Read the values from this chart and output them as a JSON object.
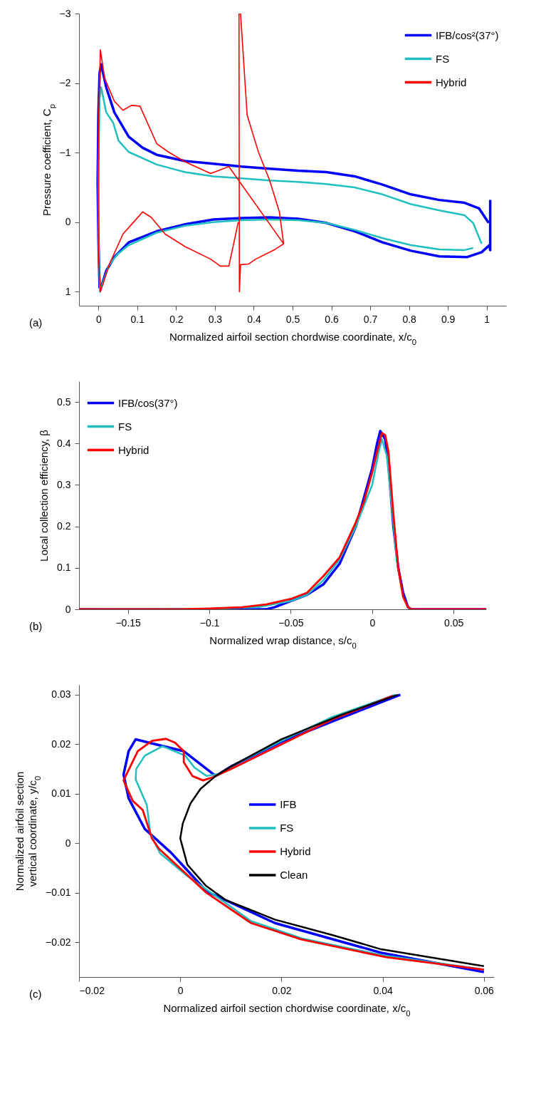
{
  "chart_data": [
    {
      "type": "line",
      "xlabel": "Normalized airfoil section chordwise coordinate, x/c$_{0}$",
      "ylabel": "Pressure coefficient, C$_{p}$",
      "xlim": [
        -0.05,
        1.05
      ],
      "ylim": [
        1.2,
        -3
      ],
      "xticks": [
        0,
        0.1,
        0.2,
        0.3,
        0.4,
        0.5,
        0.6,
        0.7,
        0.8,
        0.9,
        1
      ],
      "yticks": [
        -3,
        -2,
        -1,
        0,
        1
      ],
      "legend": "top right",
      "annotations": [
        "(a)"
      ],
      "series": [
        {
          "name": "IFB/cos²(37°)",
          "color": "#0000ff",
          "x": [
            1.005,
            0.98,
            0.943,
            0.878,
            0.805,
            0.732,
            0.66,
            0.587,
            0.514,
            0.441,
            0.369,
            0.296,
            0.223,
            0.15,
            0.114,
            0.078,
            0.041,
            0.02,
            0.007,
            0.003,
            0,
            -0.002,
            0,
            0.003,
            0.009,
            0.02,
            0.041,
            0.078,
            0.15,
            0.223,
            0.296,
            0.369,
            0.441,
            0.514,
            0.587,
            0.66,
            0.732,
            0.805,
            0.878,
            0.95,
            0.987,
            1.007,
            1.009,
            1.009
          ],
          "values": [
            0.01,
            -0.2,
            -0.28,
            -0.32,
            -0.4,
            -0.54,
            -0.66,
            -0.72,
            -0.74,
            -0.77,
            -0.8,
            -0.84,
            -0.88,
            -0.97,
            -1.07,
            -1.23,
            -1.58,
            -1.94,
            -2.27,
            -2.15,
            -1.58,
            -0.56,
            0.25,
            0.94,
            0.9,
            0.7,
            0.5,
            0.29,
            0.13,
            0.03,
            -0.04,
            -0.06,
            -0.07,
            -0.05,
            0.01,
            0.13,
            0.29,
            0.41,
            0.49,
            0.5,
            0.43,
            0.33,
            0.4,
            -0.32
          ]
        },
        {
          "name": "FS",
          "color": "#1fbfbf",
          "x": [
            0.987,
            0.965,
            0.943,
            0.878,
            0.805,
            0.732,
            0.66,
            0.587,
            0.514,
            0.441,
            0.369,
            0.296,
            0.223,
            0.15,
            0.078,
            0.052,
            0.038,
            0.02,
            0.007,
            0.003,
            0,
            0,
            0.004,
            0.012,
            0.027,
            0.049,
            0.078,
            0.15,
            0.223,
            0.296,
            0.369,
            0.441,
            0.514,
            0.587,
            0.66,
            0.732,
            0.805,
            0.878,
            0.943,
            0.965
          ],
          "values": [
            0.31,
            0.01,
            -0.1,
            -0.17,
            -0.26,
            -0.4,
            -0.5,
            -0.55,
            -0.58,
            -0.6,
            -0.63,
            -0.66,
            -0.72,
            -0.83,
            -1.01,
            -1.17,
            -1.43,
            -1.58,
            -1.94,
            -1.78,
            -0.76,
            0.25,
            1,
            0.86,
            0.62,
            0.46,
            0.33,
            0.15,
            0.05,
            0,
            -0.03,
            -0.04,
            -0.03,
            0.01,
            0.11,
            0.23,
            0.33,
            0.39,
            0.4,
            0.37
          ]
        },
        {
          "name": "Hybrid",
          "color": "#ff0000",
          "x": [
            0.36,
            0.336,
            0.314,
            0.289,
            0.223,
            0.172,
            0.136,
            0.114,
            0.092,
            0.063,
            0.027,
            0.005,
            0,
            0.001,
            0.005,
            0.016,
            0.041,
            0.063,
            0.085,
            0.107,
            0.15,
            0.18,
            0.223,
            0.289,
            0.336,
            0.477,
            0.455,
            0.405,
            0.387,
            0.366,
            0.363,
            0.362,
            0.366,
            0.383,
            0.412,
            0.441,
            0.466,
            0.477
          ],
          "values": [
            0,
            0.63,
            0.63,
            0.53,
            0.35,
            0.17,
            -0.07,
            -0.15,
            -0.01,
            0.17,
            0.62,
            1,
            0.46,
            -1.58,
            -2.48,
            -2.07,
            -1.74,
            -1.61,
            -1.68,
            -1.67,
            -1.13,
            -1.01,
            -0.87,
            -0.7,
            -0.8,
            0.31,
            0.39,
            0.53,
            0.6,
            0.61,
            1,
            -3,
            -3,
            -1.54,
            -1.01,
            -0.6,
            -0.15,
            0.31
          ]
        }
      ]
    },
    {
      "type": "line",
      "xlabel": "Normalized wrap distance, s/c$_{0}$",
      "ylabel": "Local collection efficiency, β",
      "xlim": [
        -0.18,
        0.07
      ],
      "ylim": [
        0,
        0.55
      ],
      "xticks": [
        -0.15,
        -0.1,
        -0.05,
        0,
        0.05
      ],
      "yticks": [
        0,
        0.1,
        0.2,
        0.3,
        0.4,
        0.5
      ],
      "legend": "top left",
      "annotations": [
        "(b)"
      ],
      "series": [
        {
          "name": "IFB/cos(37°)",
          "color": "#0000ff",
          "x": [
            -0.18,
            -0.065,
            -0.06,
            -0.05,
            -0.04,
            -0.03,
            -0.02,
            -0.01,
            -0.005,
            0,
            0.003,
            0.005,
            0.008,
            0.01,
            0.013,
            0.016,
            0.019,
            0.022,
            0.024,
            0.07
          ],
          "values": [
            0,
            0,
            0.005,
            0.02,
            0.035,
            0.06,
            0.11,
            0.2,
            0.27,
            0.34,
            0.4,
            0.43,
            0.41,
            0.35,
            0.2,
            0.1,
            0.04,
            0.005,
            0,
            0
          ]
        },
        {
          "name": "FS",
          "color": "#1fbfbf",
          "x": [
            -0.18,
            -0.1,
            -0.07,
            -0.05,
            -0.04,
            -0.03,
            -0.02,
            -0.01,
            0,
            0.004,
            0.006,
            0.009,
            0.012,
            0.015,
            0.018
          ],
          "values": [
            0,
            0.001,
            0.005,
            0.02,
            0.035,
            0.07,
            0.12,
            0.2,
            0.3,
            0.38,
            0.41,
            0.37,
            0.25,
            0.12,
            0.05
          ]
        },
        {
          "name": "Hybrid",
          "color": "#ff0000",
          "x": [
            -0.18,
            -0.12,
            -0.1,
            -0.08,
            -0.065,
            -0.05,
            -0.04,
            -0.03,
            -0.02,
            -0.01,
            -0.005,
            0,
            0.003,
            0.006,
            0.008,
            0.01,
            0.013,
            0.016,
            0.019,
            0.022,
            0.024,
            0.07
          ],
          "values": [
            0,
            0,
            0.002,
            0.005,
            0.012,
            0.025,
            0.04,
            0.08,
            0.125,
            0.21,
            0.26,
            0.33,
            0.38,
            0.425,
            0.42,
            0.38,
            0.23,
            0.1,
            0.03,
            0.005,
            0,
            0
          ]
        }
      ]
    },
    {
      "type": "line",
      "xlabel": "Normalized airfoil section chordwise coordinate, x/c$_{0}$",
      "ylabel": "Normalized airfoil section\nvertical coordinate, y/c$_{0}$",
      "xlim": [
        -0.02,
        0.062
      ],
      "ylim": [
        -0.027,
        0.032
      ],
      "xticks": [
        -0.02,
        0,
        0.02,
        0.04,
        0.06
      ],
      "yticks": [
        -0.02,
        -0.01,
        0,
        0.01,
        0.02,
        0.03
      ],
      "legend": "right",
      "annotations": [
        "(c)"
      ],
      "series": [
        {
          "name": "IFB",
          "color": "#0000ff",
          "x": [
            0.0435,
            0.032,
            0.02,
            0.01,
            0.007,
            0.0007,
            -0.0088,
            -0.0102,
            -0.0112,
            -0.0102,
            -0.007,
            -0.0018,
            0.0052,
            0.0187,
            0.0397,
            0.06
          ],
          "values": [
            0.03,
            0.0254,
            0.0205,
            0.0155,
            0.0136,
            0.0186,
            0.021,
            0.0186,
            0.0139,
            0.0091,
            0.0029,
            -0.0019,
            -0.0097,
            -0.0161,
            -0.0221,
            -0.026
          ]
        },
        {
          "name": "FS",
          "color": "#1fbfbf",
          "x": [
            0.0425,
            0.03,
            0.02,
            0.01,
            0.008,
            0.0052,
            0.0028,
            0.001,
            -0.0035,
            -0.007,
            -0.0087,
            -0.0088,
            -0.0066,
            -0.0059,
            -0.004,
            0.0014,
            0.014,
            0.024,
            0.04,
            0.06
          ],
          "values": [
            0.03,
            0.0255,
            0.0207,
            0.0155,
            0.0141,
            0.0136,
            0.0153,
            0.0177,
            0.0196,
            0.0177,
            0.015,
            0.0129,
            0.0077,
            0.002,
            -0.002,
            -0.0066,
            -0.0157,
            -0.0192,
            -0.0226,
            -0.0255
          ]
        },
        {
          "name": "Hybrid",
          "color": "#ff0000",
          "x": [
            0.042,
            0.03,
            0.02,
            0.01,
            0.0066,
            0.0045,
            0.0024,
            0.0007,
            0.0007,
            -0.001,
            -0.0028,
            -0.0056,
            -0.0084,
            -0.0112,
            -0.0094,
            -0.0074,
            -0.0056,
            -0.0042,
            0.0052,
            0.014,
            0.0239,
            0.0407,
            0.06
          ],
          "values": [
            0.0298,
            0.025,
            0.02,
            0.015,
            0.0134,
            0.0127,
            0.0136,
            0.0164,
            0.0186,
            0.0203,
            0.0211,
            0.0207,
            0.0186,
            0.0127,
            0.0086,
            0.0067,
            0.001,
            -0.0011,
            -0.01,
            -0.0161,
            -0.0194,
            -0.023,
            -0.0255
          ]
        },
        {
          "name": "Clean",
          "color": "#000000",
          "x": [
            0.043,
            0.032,
            0.02,
            0.01,
            0.007,
            0.004,
            0.002,
            0.0005,
            0,
            0.0014,
            0.005,
            0.0089,
            0.0187,
            0.03,
            0.0397,
            0.06
          ],
          "values": [
            0.03,
            0.026,
            0.021,
            0.0155,
            0.0136,
            0.011,
            0.008,
            0.004,
            0.001,
            -0.0043,
            -0.0085,
            -0.0114,
            -0.0154,
            -0.0185,
            -0.0214,
            -0.0248
          ]
        }
      ]
    }
  ]
}
